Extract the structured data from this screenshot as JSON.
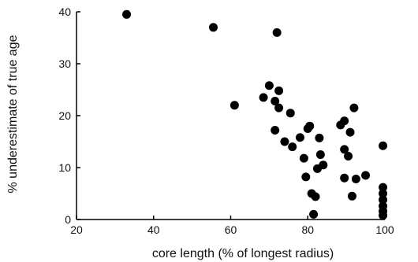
{
  "chart_data": {
    "type": "scatter",
    "title": "",
    "xlabel": "core length (% of longest radius)",
    "ylabel": "% underestimate of true age",
    "xlim": [
      20,
      100
    ],
    "ylim": [
      0,
      40
    ],
    "x_ticks": [
      20,
      40,
      60,
      80,
      100
    ],
    "y_ticks": [
      0,
      10,
      20,
      30,
      40
    ],
    "grid": false,
    "legend": "none",
    "marker_color": "#000000",
    "series": [
      {
        "points": [
          [
            33,
            39.5
          ],
          [
            55.5,
            37
          ],
          [
            72,
            36
          ],
          [
            61,
            22
          ],
          [
            68.5,
            23.5
          ],
          [
            70,
            25.8
          ],
          [
            71.5,
            22.8
          ],
          [
            72.5,
            24.8
          ],
          [
            72.5,
            21.5
          ],
          [
            71.5,
            17.2
          ],
          [
            74,
            15
          ],
          [
            75.5,
            20.5
          ],
          [
            76,
            14
          ],
          [
            78,
            15.8
          ],
          [
            79,
            11.8
          ],
          [
            79.5,
            8.2
          ],
          [
            80,
            17.5
          ],
          [
            80.5,
            18
          ],
          [
            81,
            5
          ],
          [
            81.5,
            1
          ],
          [
            82,
            4.4
          ],
          [
            82.5,
            9.8
          ],
          [
            83,
            15.7
          ],
          [
            83.3,
            12.5
          ],
          [
            84,
            10.5
          ],
          [
            88.5,
            18.2
          ],
          [
            89.5,
            19
          ],
          [
            89.5,
            13.5
          ],
          [
            89.5,
            8
          ],
          [
            90.5,
            12.2
          ],
          [
            91,
            16.8
          ],
          [
            91.5,
            4.5
          ],
          [
            92,
            21.5
          ],
          [
            92.5,
            7.8
          ],
          [
            95,
            8.5
          ],
          [
            99.5,
            14.2
          ],
          [
            99.5,
            6.2
          ],
          [
            99.5,
            5
          ],
          [
            99.5,
            3.8
          ],
          [
            99.5,
            2.6
          ],
          [
            99.5,
            1.6
          ],
          [
            99.5,
            0.8
          ]
        ]
      }
    ]
  }
}
